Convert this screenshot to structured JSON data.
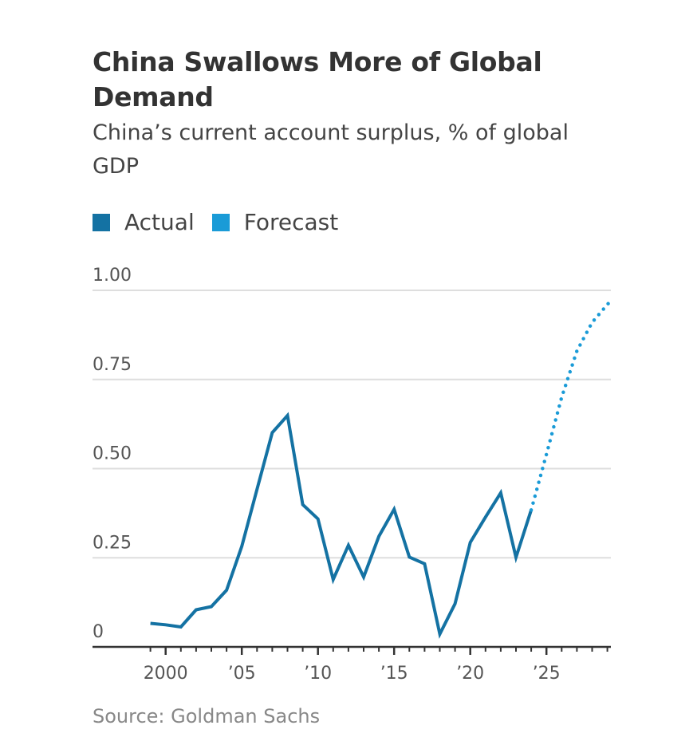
{
  "header": {
    "title": "China Swallows More of Global Demand",
    "subtitle": "China’s current account surplus, % of global GDP"
  },
  "legend": [
    {
      "label": "Actual",
      "color": "#1472a3"
    },
    {
      "label": "Forecast",
      "color": "#1a9bd7"
    }
  ],
  "source": "Source: Goldman Sachs",
  "chart_data": {
    "type": "line",
    "title": "China Swallows More of Global Demand",
    "subtitle": "China’s current account surplus, % of global GDP",
    "xlabel": "",
    "ylabel": "",
    "xlim": [
      1998,
      2029.3
    ],
    "ylim": [
      0,
      1.0
    ],
    "grid": true,
    "legend_position": "top-left",
    "y_ticks": [
      {
        "value": 0,
        "label": "0"
      },
      {
        "value": 0.25,
        "label": "0.25"
      },
      {
        "value": 0.5,
        "label": "0.50"
      },
      {
        "value": 0.75,
        "label": "0.75"
      },
      {
        "value": 1.0,
        "label": "1.00"
      }
    ],
    "x_ticks": [
      {
        "value": 2000,
        "label": "2000"
      },
      {
        "value": 2005,
        "label": "’05"
      },
      {
        "value": 2010,
        "label": "’10"
      },
      {
        "value": 2015,
        "label": "’15"
      },
      {
        "value": 2020,
        "label": "’20"
      },
      {
        "value": 2025,
        "label": "’25"
      }
    ],
    "series": [
      {
        "name": "Actual",
        "style": "solid",
        "color": "#1472a3",
        "x": [
          1999,
          2000,
          2001,
          2002,
          2003,
          2004,
          2005,
          2006,
          2007,
          2008,
          2009,
          2010,
          2011,
          2012,
          2013,
          2014,
          2015,
          2016,
          2017,
          2018,
          2019,
          2020,
          2021,
          2022,
          2023,
          2024
        ],
        "values": [
          0.066,
          0.062,
          0.056,
          0.104,
          0.113,
          0.159,
          0.282,
          0.442,
          0.601,
          0.649,
          0.399,
          0.359,
          0.189,
          0.285,
          0.196,
          0.31,
          0.386,
          0.252,
          0.233,
          0.036,
          0.121,
          0.293,
          0.364,
          0.432,
          0.251,
          0.384
        ]
      },
      {
        "name": "Forecast",
        "style": "dotted",
        "color": "#1a9bd7",
        "x": [
          2024,
          2025,
          2026,
          2027,
          2028,
          2029.1
        ],
        "values": [
          0.384,
          0.54,
          0.7,
          0.83,
          0.91,
          0.965
        ]
      }
    ]
  }
}
